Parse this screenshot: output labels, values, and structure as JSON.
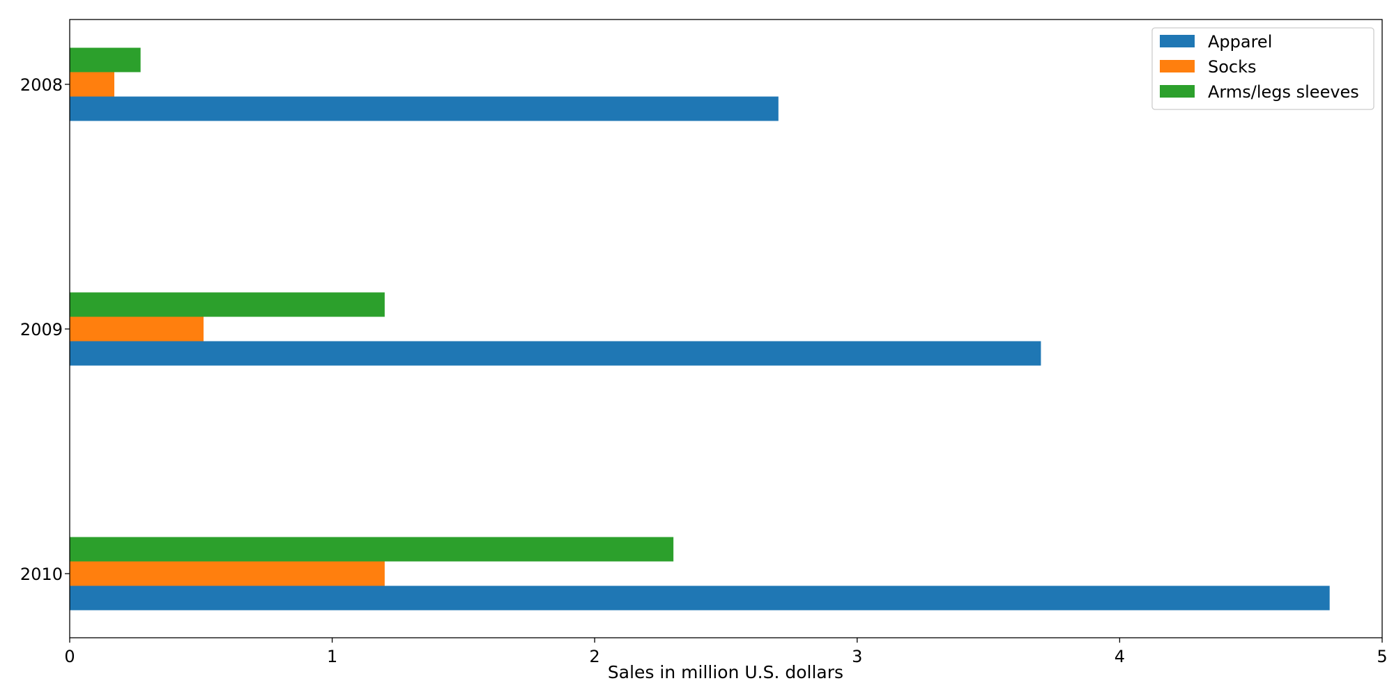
{
  "chart_data": {
    "type": "bar",
    "orientation": "horizontal",
    "categories": [
      "2008",
      "2009",
      "2010"
    ],
    "series": [
      {
        "name": "Apparel",
        "color": "#1f77b4",
        "values": [
          2.7,
          3.7,
          4.8
        ]
      },
      {
        "name": "Socks",
        "color": "#ff7f0e",
        "values": [
          0.17,
          0.51,
          1.2
        ]
      },
      {
        "name": "Arms/legs sleeves",
        "color": "#2ca02c",
        "values": [
          0.27,
          1.2,
          2.3
        ]
      }
    ],
    "xlabel": "Sales in million U.S. dollars",
    "ylabel": "",
    "title": "",
    "xlim": [
      0,
      5
    ],
    "xticks": [
      "0",
      "1",
      "2",
      "3",
      "4",
      "5"
    ],
    "grid": false,
    "legend_position": "top-right"
  }
}
